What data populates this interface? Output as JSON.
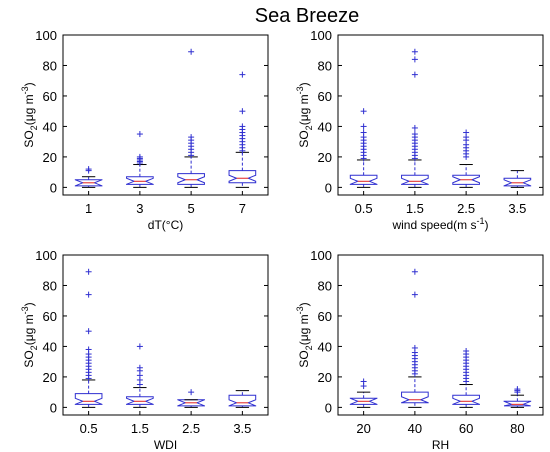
{
  "figure": {
    "title": "Sea Breeze"
  },
  "chart_data": [
    {
      "type": "box",
      "xlabel": "dT(°C)",
      "ylabel": "SO2(μg m-3)",
      "ylim": [
        -5,
        100
      ],
      "yticks": [
        0,
        20,
        40,
        60,
        80,
        100
      ],
      "categories": [
        "1",
        "3",
        "5",
        "7"
      ],
      "boxes": [
        {
          "category": "1",
          "whisker_low": 0,
          "q1": 1,
          "median": 3,
          "q3": 5,
          "whisker_high": 7,
          "outliers": [
            11,
            12
          ]
        },
        {
          "category": "3",
          "whisker_low": 0,
          "q1": 2,
          "median": 4,
          "q3": 7,
          "whisker_high": 15,
          "outliers": [
            16,
            17,
            18,
            19,
            20,
            35
          ]
        },
        {
          "category": "5",
          "whisker_low": 0,
          "q1": 2,
          "median": 5,
          "q3": 9,
          "whisker_high": 20,
          "outliers": [
            21,
            23,
            25,
            27,
            29,
            31,
            33,
            89
          ]
        },
        {
          "category": "7",
          "whisker_low": 0,
          "q1": 3,
          "median": 6,
          "q3": 11,
          "whisker_high": 23,
          "outliers": [
            24,
            26,
            28,
            30,
            32,
            34,
            36,
            38,
            40,
            50,
            74
          ]
        }
      ]
    },
    {
      "type": "box",
      "xlabel": "wind speed(m s-1)",
      "ylabel": "SO2(μg m-3)",
      "ylim": [
        -5,
        100
      ],
      "yticks": [
        0,
        20,
        40,
        60,
        80,
        100
      ],
      "categories": [
        "0.5",
        "1.5",
        "2.5",
        "3.5"
      ],
      "boxes": [
        {
          "category": "0.5",
          "whisker_low": 0,
          "q1": 2,
          "median": 4,
          "q3": 8,
          "whisker_high": 18,
          "outliers": [
            19,
            21,
            23,
            25,
            27,
            29,
            31,
            33,
            36,
            40,
            50
          ]
        },
        {
          "category": "1.5",
          "whisker_low": 0,
          "q1": 2,
          "median": 4,
          "q3": 8,
          "whisker_high": 18,
          "outliers": [
            19,
            21,
            23,
            25,
            27,
            29,
            31,
            33,
            35,
            39,
            74,
            84,
            89
          ]
        },
        {
          "category": "2.5",
          "whisker_low": 0,
          "q1": 2,
          "median": 5,
          "q3": 8,
          "whisker_high": 15,
          "outliers": [
            20,
            22,
            24,
            26,
            28,
            31,
            33,
            36
          ]
        },
        {
          "category": "3.5",
          "whisker_low": 0,
          "q1": 1,
          "median": 3,
          "q3": 6,
          "whisker_high": 11,
          "outliers": []
        }
      ]
    },
    {
      "type": "box",
      "xlabel": "WDI",
      "ylabel": "SO2(μg m-3)",
      "ylim": [
        -5,
        100
      ],
      "yticks": [
        0,
        20,
        40,
        60,
        80,
        100
      ],
      "categories": [
        "0.5",
        "1.5",
        "2.5",
        "3.5"
      ],
      "boxes": [
        {
          "category": "0.5",
          "whisker_low": 0,
          "q1": 2,
          "median": 4,
          "q3": 9,
          "whisker_high": 18,
          "outliers": [
            19,
            21,
            23,
            25,
            27,
            29,
            31,
            33,
            35,
            38,
            50,
            74,
            89
          ]
        },
        {
          "category": "1.5",
          "whisker_low": 0,
          "q1": 2,
          "median": 4,
          "q3": 7,
          "whisker_high": 13,
          "outliers": [
            15,
            18,
            21,
            24,
            26,
            40
          ]
        },
        {
          "category": "2.5",
          "whisker_low": 0,
          "q1": 1,
          "median": 3,
          "q3": 5,
          "whisker_high": 5,
          "outliers": [
            10
          ]
        },
        {
          "category": "3.5",
          "whisker_low": 0,
          "q1": 1,
          "median": 3,
          "q3": 8,
          "whisker_high": 11,
          "outliers": []
        }
      ]
    },
    {
      "type": "box",
      "xlabel": "RH",
      "ylabel": "SO2(μg m-3)",
      "ylim": [
        -5,
        100
      ],
      "yticks": [
        0,
        20,
        40,
        60,
        80,
        100
      ],
      "categories": [
        "20",
        "40",
        "60",
        "80"
      ],
      "boxes": [
        {
          "category": "20",
          "whisker_low": 0,
          "q1": 2,
          "median": 4,
          "q3": 6,
          "whisker_high": 10,
          "outliers": [
            14,
            17
          ]
        },
        {
          "category": "40",
          "whisker_low": 0,
          "q1": 3,
          "median": 5,
          "q3": 10,
          "whisker_high": 20,
          "outliers": [
            22,
            24,
            26,
            28,
            30,
            32,
            34,
            36,
            39,
            74,
            89
          ]
        },
        {
          "category": "60",
          "whisker_low": 0,
          "q1": 2,
          "median": 4,
          "q3": 8,
          "whisker_high": 15,
          "outliers": [
            17,
            19,
            21,
            23,
            25,
            27,
            29,
            31,
            33,
            35,
            37
          ]
        },
        {
          "category": "80",
          "whisker_low": 0,
          "q1": 1,
          "median": 2,
          "q3": 4,
          "whisker_high": 8,
          "outliers": [
            10,
            11,
            12
          ]
        }
      ]
    }
  ],
  "colors": {
    "box": "#2f2fd0",
    "median": "#e0201f",
    "outlier": "#2f2fd0",
    "axis": "#000000"
  }
}
